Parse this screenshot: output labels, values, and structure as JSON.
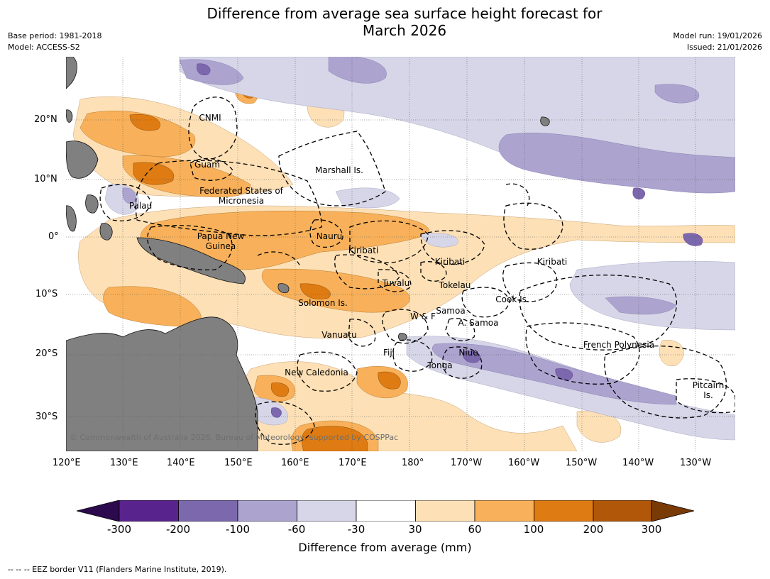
{
  "title_line1": "Difference from average sea surface height forecast for",
  "title_line2": "March 2026",
  "meta_left": [
    "Base period: 1981-2018",
    "Model: ACCESS-S2"
  ],
  "meta_right": [
    "Model run: 19/01/2026",
    "Issued: 21/01/2026"
  ],
  "lat_labels": [
    "20°N",
    "10°N",
    "0°",
    "10°S",
    "20°S",
    "30°S"
  ],
  "lon_labels": [
    "120°E",
    "130°E",
    "140°E",
    "150°E",
    "160°E",
    "170°E",
    "180°",
    "170°W",
    "160°W",
    "150°W",
    "140°W",
    "130°W"
  ],
  "places": [
    "CNMI",
    "Guam",
    "Marshall Is.",
    "Federated States of Micronesia",
    "Palau",
    "Papua New Guinea",
    "Nauru",
    "Kiribati",
    "Kiribati",
    "Kiribati",
    "Tuvalu",
    "Tokelau",
    "Solomon Is.",
    "Cook Is.",
    "Samoa",
    "W & F",
    "A. Samoa",
    "Vanuatu",
    "Fiji",
    "Niue",
    "French Polynesia",
    "Tonga",
    "New Caledonia",
    "Pitcairn Is."
  ],
  "copyright": "© Commonwealth of Australia 2026, Bureau of Meteorology, supported by COSPPac",
  "colorbar": {
    "title": "Difference from average (mm)",
    "ticks": [
      "-300",
      "-200",
      "-100",
      "-60",
      "-30",
      "30",
      "60",
      "100",
      "200",
      "300"
    ],
    "colors": [
      "#2d0a4e",
      "#58238c",
      "#7b68ad",
      "#aca4cf",
      "#d6d6e8",
      "#ffffff",
      "#fde0b6",
      "#f8b15a",
      "#de7b12",
      "#b05709",
      "#7a3a06"
    ]
  },
  "land_color": "#808080",
  "footnote": "--  --  -- EEZ border V11 (Flanders Marine Institute, 2019)."
}
